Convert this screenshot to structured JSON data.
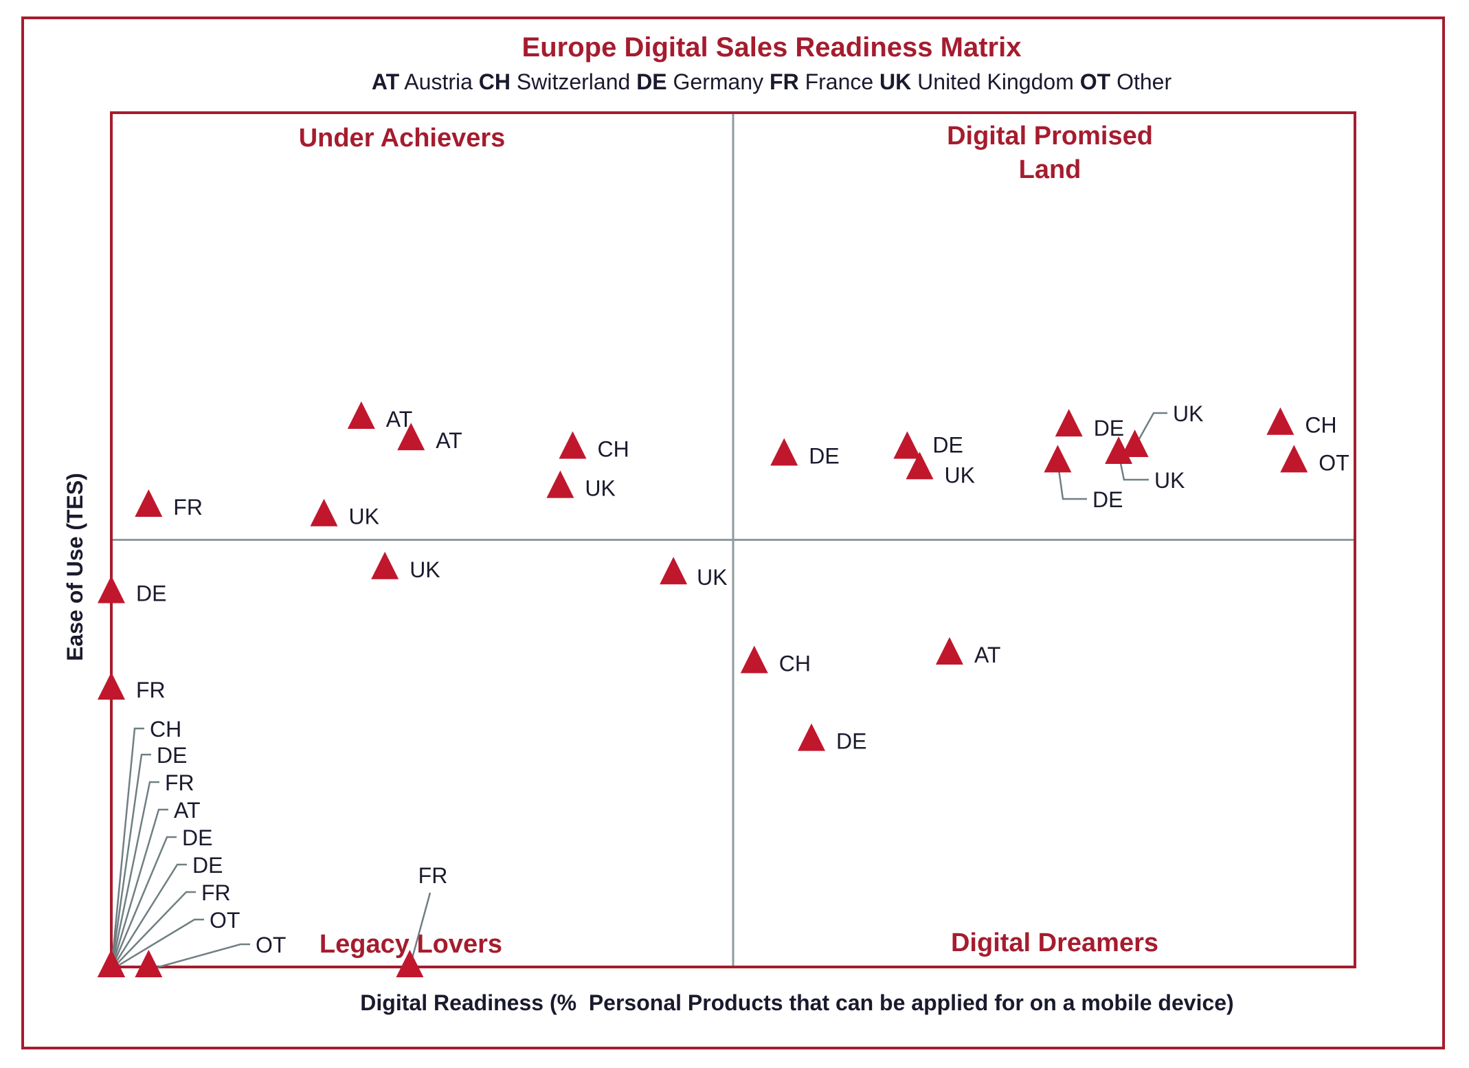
{
  "chart_data": {
    "type": "scatter",
    "title": "Europe Digital Sales Readiness Matrix",
    "legend": [
      {
        "code": "AT",
        "name": "Austria"
      },
      {
        "code": "CH",
        "name": "Switzerland"
      },
      {
        "code": "DE",
        "name": "Germany"
      },
      {
        "code": "FR",
        "name": "France"
      },
      {
        "code": "UK",
        "name": "United Kingdom"
      },
      {
        "code": "OT",
        "name": "Other"
      }
    ],
    "xlabel": "Digital Readiness (%  Personal Products that can be applied for on a mobile device)",
    "ylabel": "Ease of Use (TES)",
    "xlim": [
      0,
      100
    ],
    "ylim": [
      0,
      100
    ],
    "grid": false,
    "quadrant_divider": {
      "x": 50,
      "y": 50
    },
    "quadrants": [
      {
        "name": "Under Achievers",
        "position": "top-left"
      },
      {
        "name": "Digital Promised Land",
        "position": "top-right"
      },
      {
        "name": "Legacy Lovers",
        "position": "bottom-left"
      },
      {
        "name": "Digital Dreamers",
        "position": "bottom-right"
      }
    ],
    "marker": "triangle",
    "marker_color": "#c0172d",
    "points": [
      {
        "label": "AT",
        "x": 20.1,
        "y": 64.2
      },
      {
        "label": "AT",
        "x": 24.1,
        "y": 61.7
      },
      {
        "label": "CH",
        "x": 37.1,
        "y": 60.7
      },
      {
        "label": "UK",
        "x": 36.1,
        "y": 56.1
      },
      {
        "label": "FR",
        "x": 3.0,
        "y": 53.9
      },
      {
        "label": "UK",
        "x": 17.1,
        "y": 52.8
      },
      {
        "label": "UK",
        "x": 22.0,
        "y": 46.6
      },
      {
        "label": "UK",
        "x": 45.2,
        "y": 46.0
      },
      {
        "label": "DE",
        "x": 0.0,
        "y": 43.8
      },
      {
        "label": "FR",
        "x": 0.0,
        "y": 32.5
      },
      {
        "label": "DE",
        "x": 54.1,
        "y": 59.9
      },
      {
        "label": "DE",
        "x": 64.0,
        "y": 60.7
      },
      {
        "label": "UK",
        "x": 65.0,
        "y": 58.3
      },
      {
        "label": "DE",
        "x": 77.0,
        "y": 63.3
      },
      {
        "label": "DE",
        "x": 76.1,
        "y": 59.1
      },
      {
        "label": "UK",
        "x": 82.3,
        "y": 60.9
      },
      {
        "label": "UK",
        "x": 81.0,
        "y": 60.1
      },
      {
        "label": "CH",
        "x": 94.0,
        "y": 63.5
      },
      {
        "label": "OT",
        "x": 95.1,
        "y": 59.1
      },
      {
        "label": "CH",
        "x": 51.7,
        "y": 35.6
      },
      {
        "label": "AT",
        "x": 67.4,
        "y": 36.6
      },
      {
        "label": "DE",
        "x": 56.3,
        "y": 26.5
      },
      {
        "label": "CH",
        "x": 0.0,
        "y": 0.0
      },
      {
        "label": "DE",
        "x": 0.0,
        "y": 0.0
      },
      {
        "label": "FR",
        "x": 0.0,
        "y": 0.0
      },
      {
        "label": "AT",
        "x": 0.0,
        "y": 0.0
      },
      {
        "label": "DE",
        "x": 0.0,
        "y": 0.0
      },
      {
        "label": "DE",
        "x": 0.0,
        "y": 0.0
      },
      {
        "label": "FR",
        "x": 0.0,
        "y": 0.0
      },
      {
        "label": "OT",
        "x": 0.0,
        "y": 0.0
      },
      {
        "label": "OT",
        "x": 3.0,
        "y": 0.0
      },
      {
        "label": "FR",
        "x": 24.0,
        "y": 0.0
      }
    ]
  },
  "colors": {
    "accent": "#a51c2e",
    "marker": "#c0172d",
    "text": "#1a1a2e",
    "divider": "#8e9a9e",
    "leader": "#6f7f82"
  }
}
